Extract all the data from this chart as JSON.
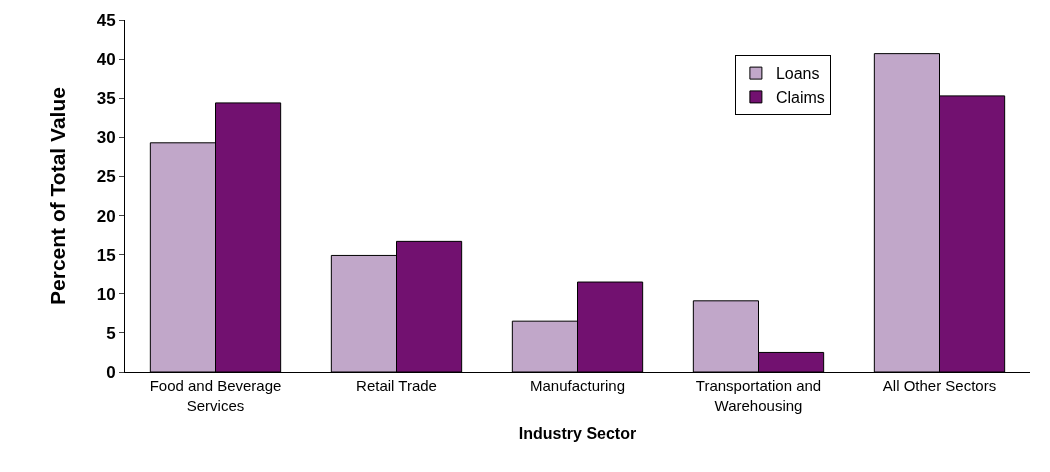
{
  "chart_data": {
    "type": "bar",
    "xlabel": "Industry Sector",
    "ylabel": "Percent of Total Value",
    "categories": [
      "Food and Beverage\nServices",
      "Retail Trade",
      "Manufacturing",
      "Transportation and\nWarehousing",
      "All Other Sectors"
    ],
    "series": [
      {
        "name": "Loans",
        "color": "#c1a7c9",
        "values": [
          29.3,
          14.9,
          6.5,
          9.1,
          40.7
        ]
      },
      {
        "name": "Claims",
        "color": "#721170",
        "values": [
          34.4,
          16.7,
          11.5,
          2.5,
          35.3
        ]
      }
    ],
    "ylim": [
      0,
      45
    ],
    "yticks": [
      0,
      5,
      10,
      15,
      20,
      25,
      30,
      35,
      40,
      45
    ],
    "legend": "top right"
  }
}
